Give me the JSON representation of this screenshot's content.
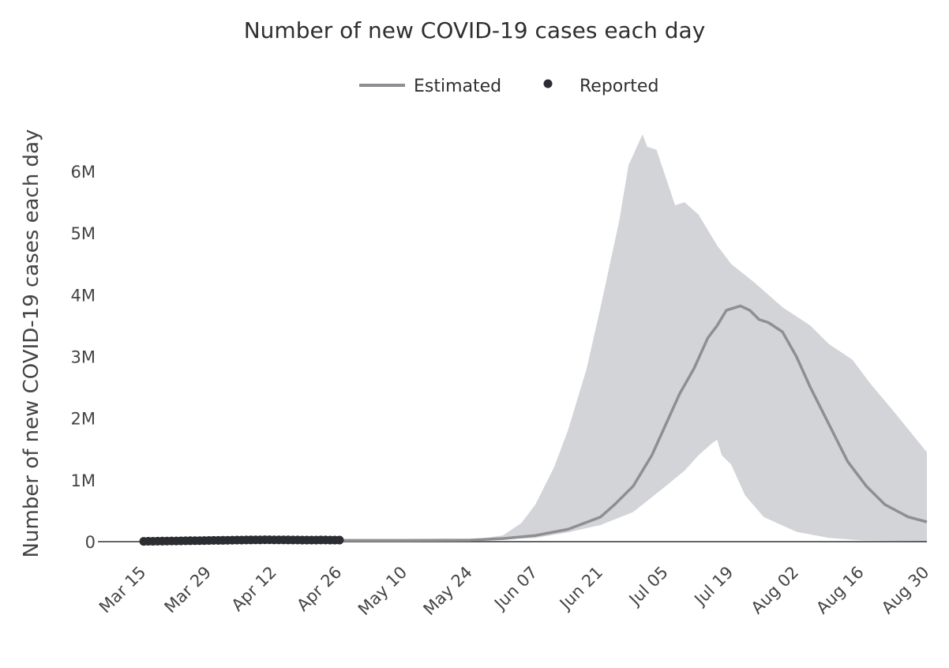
{
  "chart_data": {
    "type": "line",
    "title": "Number of new COVID-19 cases each day",
    "xlabel": "",
    "ylabel": "Number of new COVID-19 cases each day",
    "x_axis": {
      "type": "date",
      "range": [
        "2020-03-15",
        "2020-08-30"
      ],
      "tick_dates": [
        "2020-03-15",
        "2020-03-29",
        "2020-04-12",
        "2020-04-26",
        "2020-05-10",
        "2020-05-24",
        "2020-06-07",
        "2020-06-21",
        "2020-07-05",
        "2020-07-19",
        "2020-08-02",
        "2020-08-16",
        "2020-08-30"
      ],
      "tick_labels": [
        "Mar 15",
        "Mar 29",
        "Apr 12",
        "Apr 26",
        "May 10",
        "May 24",
        "Jun 07",
        "Jun 21",
        "Jul 05",
        "Jul 19",
        "Aug 02",
        "Aug 16",
        "Aug 30"
      ]
    },
    "y_axis": {
      "range": [
        0,
        6700000
      ],
      "tick_values": [
        0,
        1000000,
        2000000,
        3000000,
        4000000,
        5000000,
        6000000
      ],
      "tick_labels": [
        "0",
        "1M",
        "2M",
        "3M",
        "4M",
        "5M",
        "6M"
      ]
    },
    "grid": false,
    "legend": {
      "position": "top-center",
      "entries": [
        "Estimated",
        "Reported"
      ]
    },
    "colors": {
      "estimated_line": "#8e8e93",
      "band_fill": "#d3d4d8",
      "reported_point": "#2b2d33",
      "zero_line": "#333333"
    },
    "series": [
      {
        "name": "Estimated",
        "kind": "line",
        "points": [
          [
            "2020-04-26",
            20000
          ],
          [
            "2020-05-10",
            20000
          ],
          [
            "2020-05-24",
            25000
          ],
          [
            "2020-05-31",
            50000
          ],
          [
            "2020-06-07",
            100000
          ],
          [
            "2020-06-14",
            200000
          ],
          [
            "2020-06-21",
            400000
          ],
          [
            "2020-06-24",
            600000
          ],
          [
            "2020-06-28",
            900000
          ],
          [
            "2020-07-02",
            1400000
          ],
          [
            "2020-07-05",
            1900000
          ],
          [
            "2020-07-08",
            2400000
          ],
          [
            "2020-07-11",
            2800000
          ],
          [
            "2020-07-14",
            3300000
          ],
          [
            "2020-07-16",
            3500000
          ],
          [
            "2020-07-18",
            3750000
          ],
          [
            "2020-07-21",
            3820000
          ],
          [
            "2020-07-23",
            3750000
          ],
          [
            "2020-07-25",
            3600000
          ],
          [
            "2020-07-27",
            3550000
          ],
          [
            "2020-07-30",
            3400000
          ],
          [
            "2020-08-02",
            3000000
          ],
          [
            "2020-08-05",
            2500000
          ],
          [
            "2020-08-09",
            1900000
          ],
          [
            "2020-08-13",
            1300000
          ],
          [
            "2020-08-17",
            900000
          ],
          [
            "2020-08-21",
            600000
          ],
          [
            "2020-08-26",
            400000
          ],
          [
            "2020-08-30",
            320000
          ]
        ]
      },
      {
        "name": "Reported",
        "kind": "points",
        "points": [
          [
            "2020-03-15",
            5000
          ],
          [
            "2020-03-16",
            6000
          ],
          [
            "2020-03-17",
            7000
          ],
          [
            "2020-03-18",
            8000
          ],
          [
            "2020-03-19",
            9000
          ],
          [
            "2020-03-20",
            10000
          ],
          [
            "2020-03-21",
            11000
          ],
          [
            "2020-03-22",
            12000
          ],
          [
            "2020-03-23",
            13000
          ],
          [
            "2020-03-24",
            14000
          ],
          [
            "2020-03-25",
            15000
          ],
          [
            "2020-03-26",
            16000
          ],
          [
            "2020-03-27",
            17000
          ],
          [
            "2020-03-28",
            18000
          ],
          [
            "2020-03-29",
            19000
          ],
          [
            "2020-03-30",
            20000
          ],
          [
            "2020-03-31",
            21000
          ],
          [
            "2020-04-01",
            22000
          ],
          [
            "2020-04-02",
            23000
          ],
          [
            "2020-04-03",
            24000
          ],
          [
            "2020-04-04",
            25000
          ],
          [
            "2020-04-05",
            26000
          ],
          [
            "2020-04-06",
            27000
          ],
          [
            "2020-04-07",
            28000
          ],
          [
            "2020-04-08",
            29000
          ],
          [
            "2020-04-09",
            30000
          ],
          [
            "2020-04-10",
            31000
          ],
          [
            "2020-04-11",
            31000
          ],
          [
            "2020-04-12",
            30000
          ],
          [
            "2020-04-13",
            30000
          ],
          [
            "2020-04-14",
            29000
          ],
          [
            "2020-04-15",
            28000
          ],
          [
            "2020-04-16",
            27000
          ],
          [
            "2020-04-17",
            27000
          ],
          [
            "2020-04-18",
            26000
          ],
          [
            "2020-04-19",
            26000
          ],
          [
            "2020-04-20",
            26000
          ],
          [
            "2020-04-21",
            26000
          ],
          [
            "2020-04-22",
            27000
          ],
          [
            "2020-04-23",
            27000
          ],
          [
            "2020-04-24",
            26000
          ],
          [
            "2020-04-25",
            26000
          ],
          [
            "2020-04-26",
            25000
          ]
        ]
      },
      {
        "name": "Estimated range (upper)",
        "kind": "band-upper",
        "points": [
          [
            "2020-04-26",
            25000
          ],
          [
            "2020-05-24",
            30000
          ],
          [
            "2020-05-31",
            100000
          ],
          [
            "2020-06-04",
            300000
          ],
          [
            "2020-06-07",
            600000
          ],
          [
            "2020-06-11",
            1200000
          ],
          [
            "2020-06-14",
            1800000
          ],
          [
            "2020-06-18",
            2800000
          ],
          [
            "2020-06-21",
            3800000
          ],
          [
            "2020-06-25",
            5200000
          ],
          [
            "2020-06-27",
            6100000
          ],
          [
            "2020-06-30",
            6600000
          ],
          [
            "2020-07-01",
            6400000
          ],
          [
            "2020-07-03",
            6350000
          ],
          [
            "2020-07-07",
            5450000
          ],
          [
            "2020-07-09",
            5500000
          ],
          [
            "2020-07-12",
            5300000
          ],
          [
            "2020-07-16",
            4800000
          ],
          [
            "2020-07-19",
            4500000
          ],
          [
            "2020-07-24",
            4200000
          ],
          [
            "2020-07-30",
            3800000
          ],
          [
            "2020-08-05",
            3500000
          ],
          [
            "2020-08-09",
            3200000
          ],
          [
            "2020-08-14",
            2950000
          ],
          [
            "2020-08-18",
            2550000
          ],
          [
            "2020-08-23",
            2100000
          ],
          [
            "2020-08-30",
            1450000
          ]
        ]
      },
      {
        "name": "Estimated range (lower)",
        "kind": "band-lower",
        "points": [
          [
            "2020-04-26",
            15000
          ],
          [
            "2020-05-24",
            20000
          ],
          [
            "2020-06-07",
            60000
          ],
          [
            "2020-06-14",
            150000
          ],
          [
            "2020-06-21",
            270000
          ],
          [
            "2020-06-28",
            480000
          ],
          [
            "2020-07-05",
            900000
          ],
          [
            "2020-07-09",
            1150000
          ],
          [
            "2020-07-12",
            1400000
          ],
          [
            "2020-07-15",
            1600000
          ],
          [
            "2020-07-16",
            1650000
          ],
          [
            "2020-07-17",
            1400000
          ],
          [
            "2020-07-19",
            1250000
          ],
          [
            "2020-07-22",
            750000
          ],
          [
            "2020-07-26",
            400000
          ],
          [
            "2020-08-02",
            160000
          ],
          [
            "2020-08-09",
            60000
          ],
          [
            "2020-08-16",
            20000
          ],
          [
            "2020-08-30",
            5000
          ]
        ]
      }
    ]
  }
}
